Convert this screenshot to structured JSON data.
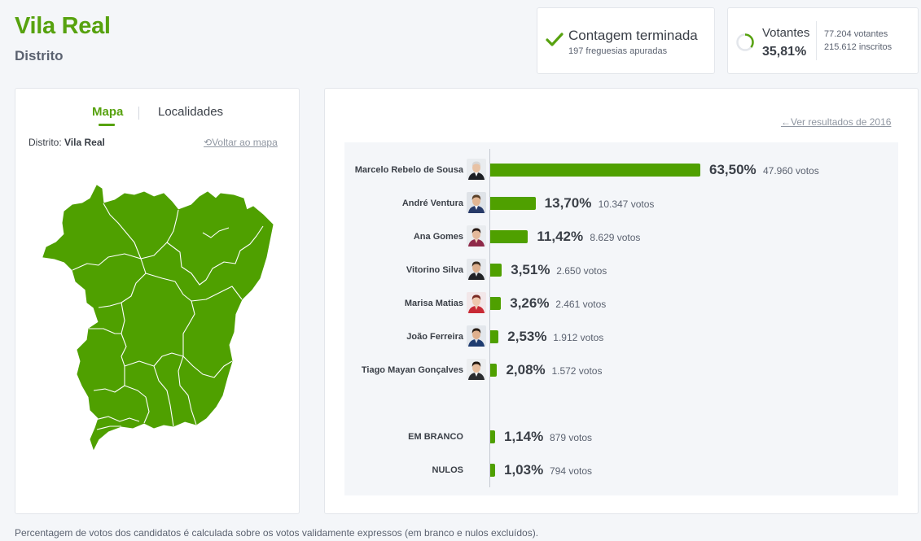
{
  "header": {
    "title": "Vila Real",
    "subtitle": "Distrito"
  },
  "status": {
    "title": "Contagem terminada",
    "subtitle": "197 freguesias apuradas",
    "color": "#57a20f"
  },
  "voters": {
    "label": "Votantes",
    "percent": "35,81%",
    "percent_value": 35.81,
    "voters_text": "77.204 votantes",
    "registered_text": "215.612 inscritos"
  },
  "map_panel": {
    "tab_map": "Mapa",
    "tab_localities": "Localidades",
    "district_label": "Distrito:",
    "district_name": "Vila Real",
    "back_link": "Voltar ao mapa",
    "fill_color": "#4fa000"
  },
  "results": {
    "prev_link": "Ver resultados de 2016",
    "bar_color": "#4fa000",
    "candidates": [
      {
        "name": "Marcelo Rebelo de Sousa",
        "percent": "63,50%",
        "value": 63.5,
        "votes": "47.960 votos",
        "avatar": "avatar-marcelo"
      },
      {
        "name": "André Ventura",
        "percent": "13,70%",
        "value": 13.7,
        "votes": "10.347 votos",
        "avatar": "avatar-ventura"
      },
      {
        "name": "Ana Gomes",
        "percent": "11,42%",
        "value": 11.42,
        "votes": "8.629 votos",
        "avatar": "avatar-gomes"
      },
      {
        "name": "Vitorino Silva",
        "percent": "3,51%",
        "value": 3.51,
        "votes": "2.650 votos",
        "avatar": "avatar-silva"
      },
      {
        "name": "Marisa Matias",
        "percent": "3,26%",
        "value": 3.26,
        "votes": "2.461 votos",
        "avatar": "avatar-matias"
      },
      {
        "name": "João Ferreira",
        "percent": "2,53%",
        "value": 2.53,
        "votes": "1.912 votos",
        "avatar": "avatar-ferreira"
      },
      {
        "name": "Tiago Mayan Gonçalves",
        "percent": "2,08%",
        "value": 2.08,
        "votes": "1.572 votos",
        "avatar": "avatar-goncalves"
      }
    ],
    "others": [
      {
        "name": "EM BRANCO",
        "percent": "1,14%",
        "value": 1.14,
        "votes": "879 votos"
      },
      {
        "name": "NULOS",
        "percent": "1,03%",
        "value": 1.03,
        "votes": "794 votos"
      }
    ]
  },
  "footnote": "Percentagem de votos dos candidatos é calculada sobre os votos validamente expressos (em branco e nulos excluídos)."
}
